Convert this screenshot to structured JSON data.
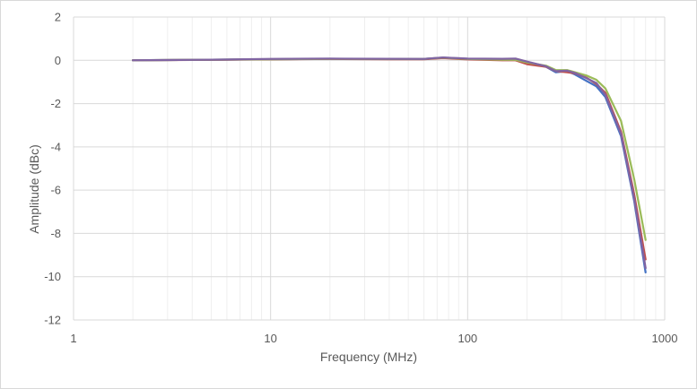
{
  "chart_data": {
    "type": "line",
    "title": "",
    "xlabel": "Frequency (MHz)",
    "ylabel": "Amplitude (dBc)",
    "x_scale": "log",
    "xlim": [
      1,
      1000
    ],
    "ylim": [
      -12,
      2
    ],
    "x_ticks": [
      1,
      10,
      100,
      1000
    ],
    "x_tick_labels": [
      "1",
      "10",
      "100",
      "1000"
    ],
    "y_ticks": [
      2,
      0,
      -2,
      -4,
      -6,
      -8,
      -10,
      -12
    ],
    "y_tick_labels": [
      "2",
      "0",
      "-2",
      "-4",
      "-6",
      "-8",
      "-10",
      "-12"
    ],
    "grid": true,
    "legend": "none",
    "series": [
      {
        "color": "#4472c4",
        "x": [
          2,
          5,
          10,
          20,
          40,
          60,
          75,
          100,
          150,
          175,
          200,
          250,
          280,
          320,
          350,
          400,
          450,
          500,
          600,
          700,
          800
        ],
        "y": [
          0.0,
          0.03,
          0.05,
          0.07,
          0.06,
          0.06,
          0.12,
          0.07,
          0.05,
          0.04,
          -0.1,
          -0.3,
          -0.55,
          -0.5,
          -0.65,
          -0.95,
          -1.2,
          -1.7,
          -3.5,
          -6.5,
          -9.8
        ]
      },
      {
        "color": "#c0504d",
        "x": [
          2,
          5,
          10,
          20,
          40,
          60,
          75,
          100,
          150,
          175,
          200,
          250,
          280,
          320,
          350,
          400,
          450,
          500,
          600,
          700,
          800
        ],
        "y": [
          0.0,
          0.02,
          0.04,
          0.06,
          0.05,
          0.05,
          0.1,
          0.04,
          0.0,
          0.0,
          -0.18,
          -0.3,
          -0.5,
          -0.55,
          -0.6,
          -0.8,
          -1.1,
          -1.5,
          -3.3,
          -6.2,
          -9.2
        ]
      },
      {
        "color": "#9bbb59",
        "x": [
          2,
          5,
          10,
          20,
          40,
          60,
          75,
          100,
          150,
          175,
          200,
          250,
          280,
          320,
          350,
          400,
          450,
          500,
          600,
          700,
          800
        ],
        "y": [
          0.0,
          0.03,
          0.05,
          0.07,
          0.06,
          0.06,
          0.12,
          0.06,
          0.03,
          0.02,
          -0.1,
          -0.25,
          -0.45,
          -0.45,
          -0.55,
          -0.7,
          -0.9,
          -1.3,
          -2.8,
          -5.5,
          -8.3
        ]
      },
      {
        "color": "#8064a2",
        "x": [
          2,
          5,
          10,
          20,
          40,
          60,
          75,
          100,
          150,
          175,
          200,
          250,
          280,
          320,
          350,
          400,
          450,
          500,
          600,
          700,
          800
        ],
        "y": [
          0.0,
          0.03,
          0.06,
          0.08,
          0.07,
          0.06,
          0.13,
          0.08,
          0.07,
          0.08,
          -0.06,
          -0.28,
          -0.5,
          -0.48,
          -0.58,
          -0.82,
          -1.05,
          -1.6,
          -3.4,
          -6.4,
          -9.6
        ]
      }
    ]
  }
}
